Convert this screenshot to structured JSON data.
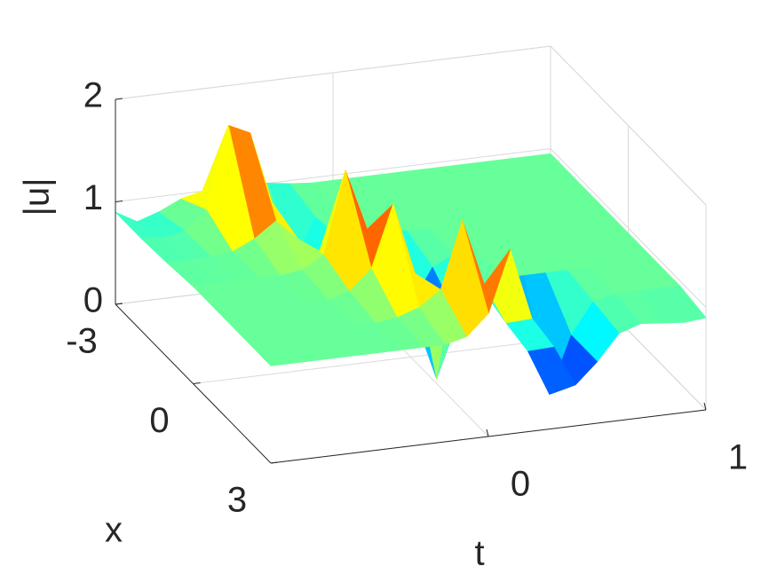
{
  "chart_data": {
    "type": "surface",
    "colormap": "jet",
    "clim": [
      0,
      2
    ],
    "t_label": "t",
    "x_label": "x",
    "z_label": "|u|",
    "tlim": [
      -1,
      1
    ],
    "xlim": [
      -3,
      3
    ],
    "zlim": [
      0,
      2
    ],
    "tticks": [
      0,
      1
    ],
    "xticks": [
      -3,
      0,
      3
    ],
    "zticks": [
      0,
      1,
      2
    ],
    "grid": true,
    "t": [
      -1,
      -0.9,
      -0.8,
      -0.7,
      -0.6,
      -0.5,
      -0.4,
      -0.3,
      -0.2,
      -0.1,
      0,
      0.1,
      0.2,
      0.3,
      0.4,
      0.5,
      0.6,
      0.7,
      0.8,
      0.9,
      1
    ],
    "x": [
      -3,
      -2,
      -1,
      0,
      1,
      2,
      3
    ],
    "z": [
      [
        0.9,
        0.78,
        0.85,
        0.95,
        1.0,
        1.05,
        1.05,
        1.0,
        0.97,
        0.95,
        0.95,
        0.95,
        0.95,
        0.95,
        0.95,
        0.95,
        0.95,
        0.95,
        0.95,
        0.95,
        0.95
      ],
      [
        0.9,
        0.88,
        0.92,
        1.1,
        1.9,
        1.8,
        1.1,
        0.5,
        0.9,
        0.95,
        0.95,
        0.95,
        0.95,
        0.95,
        0.95,
        0.95,
        0.95,
        0.95,
        0.95,
        0.95,
        0.95
      ],
      [
        0.92,
        0.92,
        0.93,
        0.95,
        1.05,
        1.2,
        1.0,
        0.85,
        0.95,
        0.95,
        0.95,
        0.95,
        0.95,
        0.95,
        0.95,
        0.95,
        0.95,
        0.95,
        0.95,
        0.95,
        0.95
      ],
      [
        0.95,
        0.95,
        0.95,
        0.95,
        0.95,
        0.98,
        1.1,
        1.9,
        1.3,
        0.9,
        0.5,
        0.85,
        0.95,
        0.95,
        0.95,
        0.95,
        0.95,
        0.95,
        0.95,
        0.95,
        0.95
      ],
      [
        0.95,
        0.95,
        0.95,
        0.95,
        0.95,
        0.95,
        1.0,
        1.2,
        1.8,
        1.1,
        0.05,
        0.6,
        0.9,
        0.95,
        0.95,
        0.95,
        0.95,
        0.95,
        0.95,
        0.95,
        0.95
      ],
      [
        0.95,
        0.95,
        0.95,
        0.95,
        0.95,
        0.95,
        0.95,
        0.98,
        1.05,
        1.2,
        1.85,
        1.2,
        0.8,
        0.5,
        0.05,
        0.6,
        0.9,
        0.95,
        0.95,
        0.95,
        0.95
      ],
      [
        0.95,
        0.95,
        0.95,
        0.95,
        0.95,
        0.95,
        0.95,
        0.95,
        0.95,
        1.0,
        1.2,
        1.8,
        1.1,
        0.8,
        0.4,
        0.6,
        0.85,
        0.92,
        0.9,
        0.88,
        0.9
      ]
    ]
  }
}
